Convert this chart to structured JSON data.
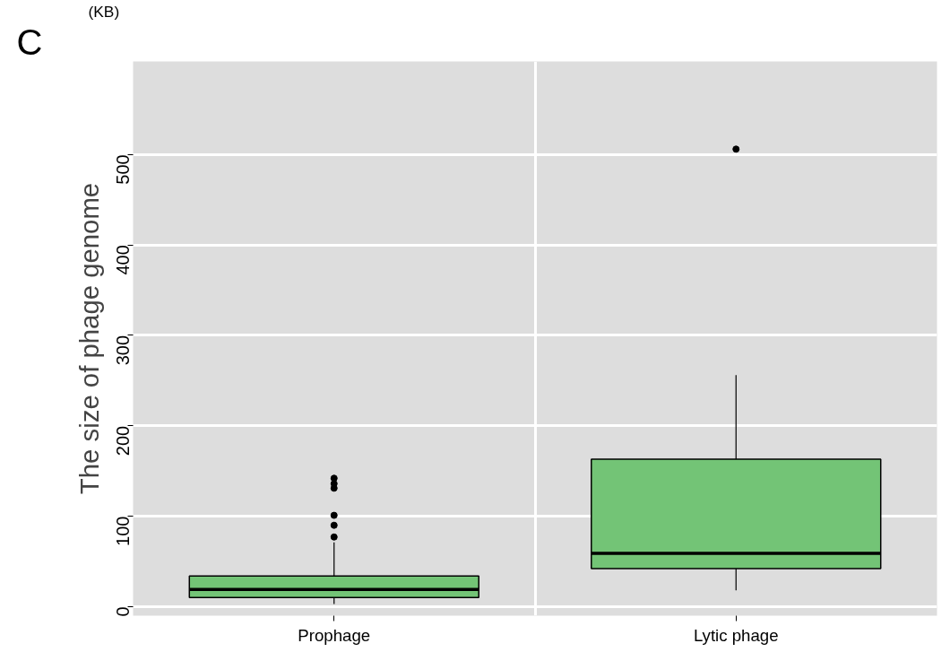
{
  "chart_data": {
    "type": "box",
    "ylabel": "The size of phage genome",
    "annotations": [
      "C",
      "(KB)"
    ],
    "categories": [
      "Prophage",
      "Lytic phage"
    ],
    "series": [
      {
        "color": "#73c476",
        "boxes": [
          {
            "low": 3,
            "q1": 10,
            "median": 19,
            "q3": 34,
            "high": 71,
            "outliers": [
              77,
              90,
              101,
              131,
              136,
              142
            ]
          },
          {
            "low": 18,
            "q1": 42,
            "median": 59,
            "q3": 163,
            "high": 256,
            "outliers": [
              506
            ]
          }
        ]
      }
    ],
    "ylim": [
      -10,
      603
    ],
    "yticks": [
      0,
      100,
      200,
      300,
      400,
      500
    ],
    "grid": true
  }
}
